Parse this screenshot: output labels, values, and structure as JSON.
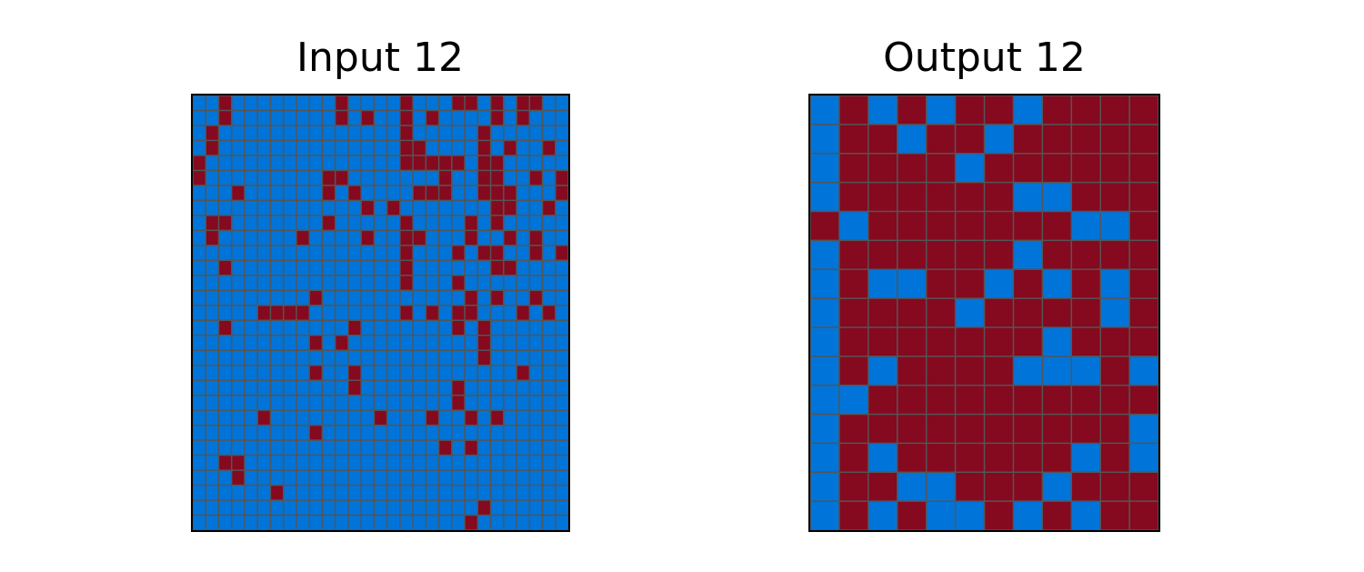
{
  "colors": {
    "0": "#0074D9",
    "1": "#85091F",
    "grid_line": "#555555",
    "frame": "#000000"
  },
  "panels": {
    "input": {
      "title": "Input 12",
      "rows": [
        "00100000000100001000110101100",
        "00100000000101001010000101000",
        "01000000000000001000001000000",
        "01000000000000001100001010010",
        "10000000000000001111101100000",
        "10000000001100000001001100101",
        "00010000001010000111001110001",
        "00000000000001010000000110010",
        "01100000001000001000010100000",
        "01000000100001001100010010100",
        "00000000000000001000101100101",
        "00100000000000001000000110000",
        "00000000000000001000100000000",
        "00000000010000000000010100100",
        "00000111100000001010110001010",
        "00100000000010000000101000000",
        "00000000010100000000001000000",
        "00000000000000000000001000000",
        "00000000010010000000000001000",
        "00000000000010000000100000000",
        "00000000000000000000100000000",
        "00000100000000100010010100000",
        "00000000010000000000000000000",
        "00000000000000000001010000000",
        "00110000000000000000000000000",
        "00010000000000000000000000000",
        "00000010000000000000000000000",
        "00000000000000000000001000000",
        "00000000000000000000010000000"
      ]
    },
    "output": {
      "title": "Output 12",
      "rows": [
        "010101101111",
        "011011011111",
        "011110111111",
        "011111100111",
        "101111111001",
        "011111101111",
        "010011010101",
        "011110111101",
        "011111110111",
        "010111100010",
        "001111111111",
        "011111111110",
        "010111111010",
        "011001110111",
        "010100101011"
      ]
    }
  }
}
